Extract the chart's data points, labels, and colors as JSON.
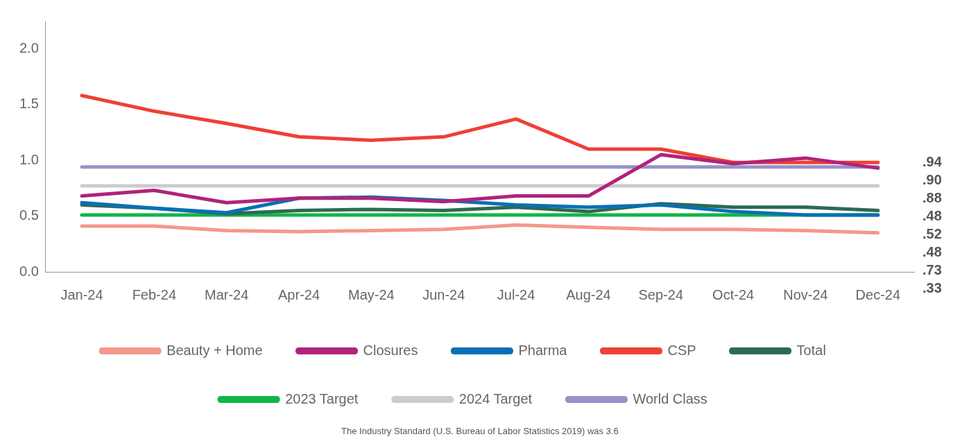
{
  "chart_data": {
    "type": "line",
    "categories": [
      "Jan-24",
      "Feb-24",
      "Mar-24",
      "Apr-24",
      "May-24",
      "Jun-24",
      "Jul-24",
      "Aug-24",
      "Sep-24",
      "Oct-24",
      "Nov-24",
      "Dec-24"
    ],
    "series": [
      {
        "name": "Beauty + Home",
        "color": "#f4988a",
        "values": [
          0.41,
          0.41,
          0.37,
          0.36,
          0.37,
          0.38,
          0.42,
          0.4,
          0.38,
          0.38,
          0.37,
          0.35
        ]
      },
      {
        "name": "Closures",
        "color": "#b0237a",
        "values": [
          0.68,
          0.73,
          0.62,
          0.66,
          0.66,
          0.63,
          0.68,
          0.68,
          1.05,
          0.97,
          1.02,
          0.93
        ]
      },
      {
        "name": "Pharma",
        "color": "#0a6fb5",
        "values": [
          0.62,
          0.57,
          0.53,
          0.66,
          0.67,
          0.64,
          0.6,
          0.58,
          0.6,
          0.54,
          0.51,
          0.51
        ]
      },
      {
        "name": "CSP",
        "color": "#ee4035",
        "values": [
          1.58,
          1.44,
          1.33,
          1.21,
          1.18,
          1.21,
          1.37,
          1.1,
          1.1,
          0.98,
          0.98,
          0.98
        ]
      },
      {
        "name": "Total",
        "color": "#2e6a50",
        "values": [
          0.6,
          0.57,
          0.52,
          0.55,
          0.56,
          0.55,
          0.58,
          0.54,
          0.61,
          0.58,
          0.58,
          0.55
        ]
      },
      {
        "name": "2023 Target",
        "color": "#10b54a",
        "values": [
          0.51,
          0.51,
          0.51,
          0.51,
          0.51,
          0.51,
          0.51,
          0.51,
          0.51,
          0.51,
          0.51,
          0.51
        ]
      },
      {
        "name": "2024 Target",
        "color": "#cccccc",
        "values": [
          0.77,
          0.77,
          0.77,
          0.77,
          0.77,
          0.77,
          0.77,
          0.77,
          0.77,
          0.77,
          0.77,
          0.77
        ]
      },
      {
        "name": "World Class",
        "color": "#9892c6",
        "values": [
          0.94,
          0.94,
          0.94,
          0.94,
          0.94,
          0.94,
          0.94,
          0.94,
          0.94,
          0.94,
          0.94,
          0.94
        ]
      }
    ],
    "ylim": [
      0,
      2.25
    ],
    "yticks": [
      {
        "value": 0,
        "label": "0.0"
      },
      {
        "value": 0.5,
        "label": "0.5"
      },
      {
        "value": 1,
        "label": "1.0"
      },
      {
        "value": 1.5,
        "label": "1.5"
      },
      {
        "value": 2,
        "label": "2.0"
      }
    ],
    "grid": false,
    "legend": "bottom",
    "marker": "none",
    "line_style": "solid",
    "annotations": [
      ".94",
      ".90",
      ".88",
      ".48",
      ".52",
      ".48",
      ".73",
      ".33",
      "The Industry Standard (U.S. Bureau of Labor Statistics 2019) was 3.6"
    ]
  }
}
